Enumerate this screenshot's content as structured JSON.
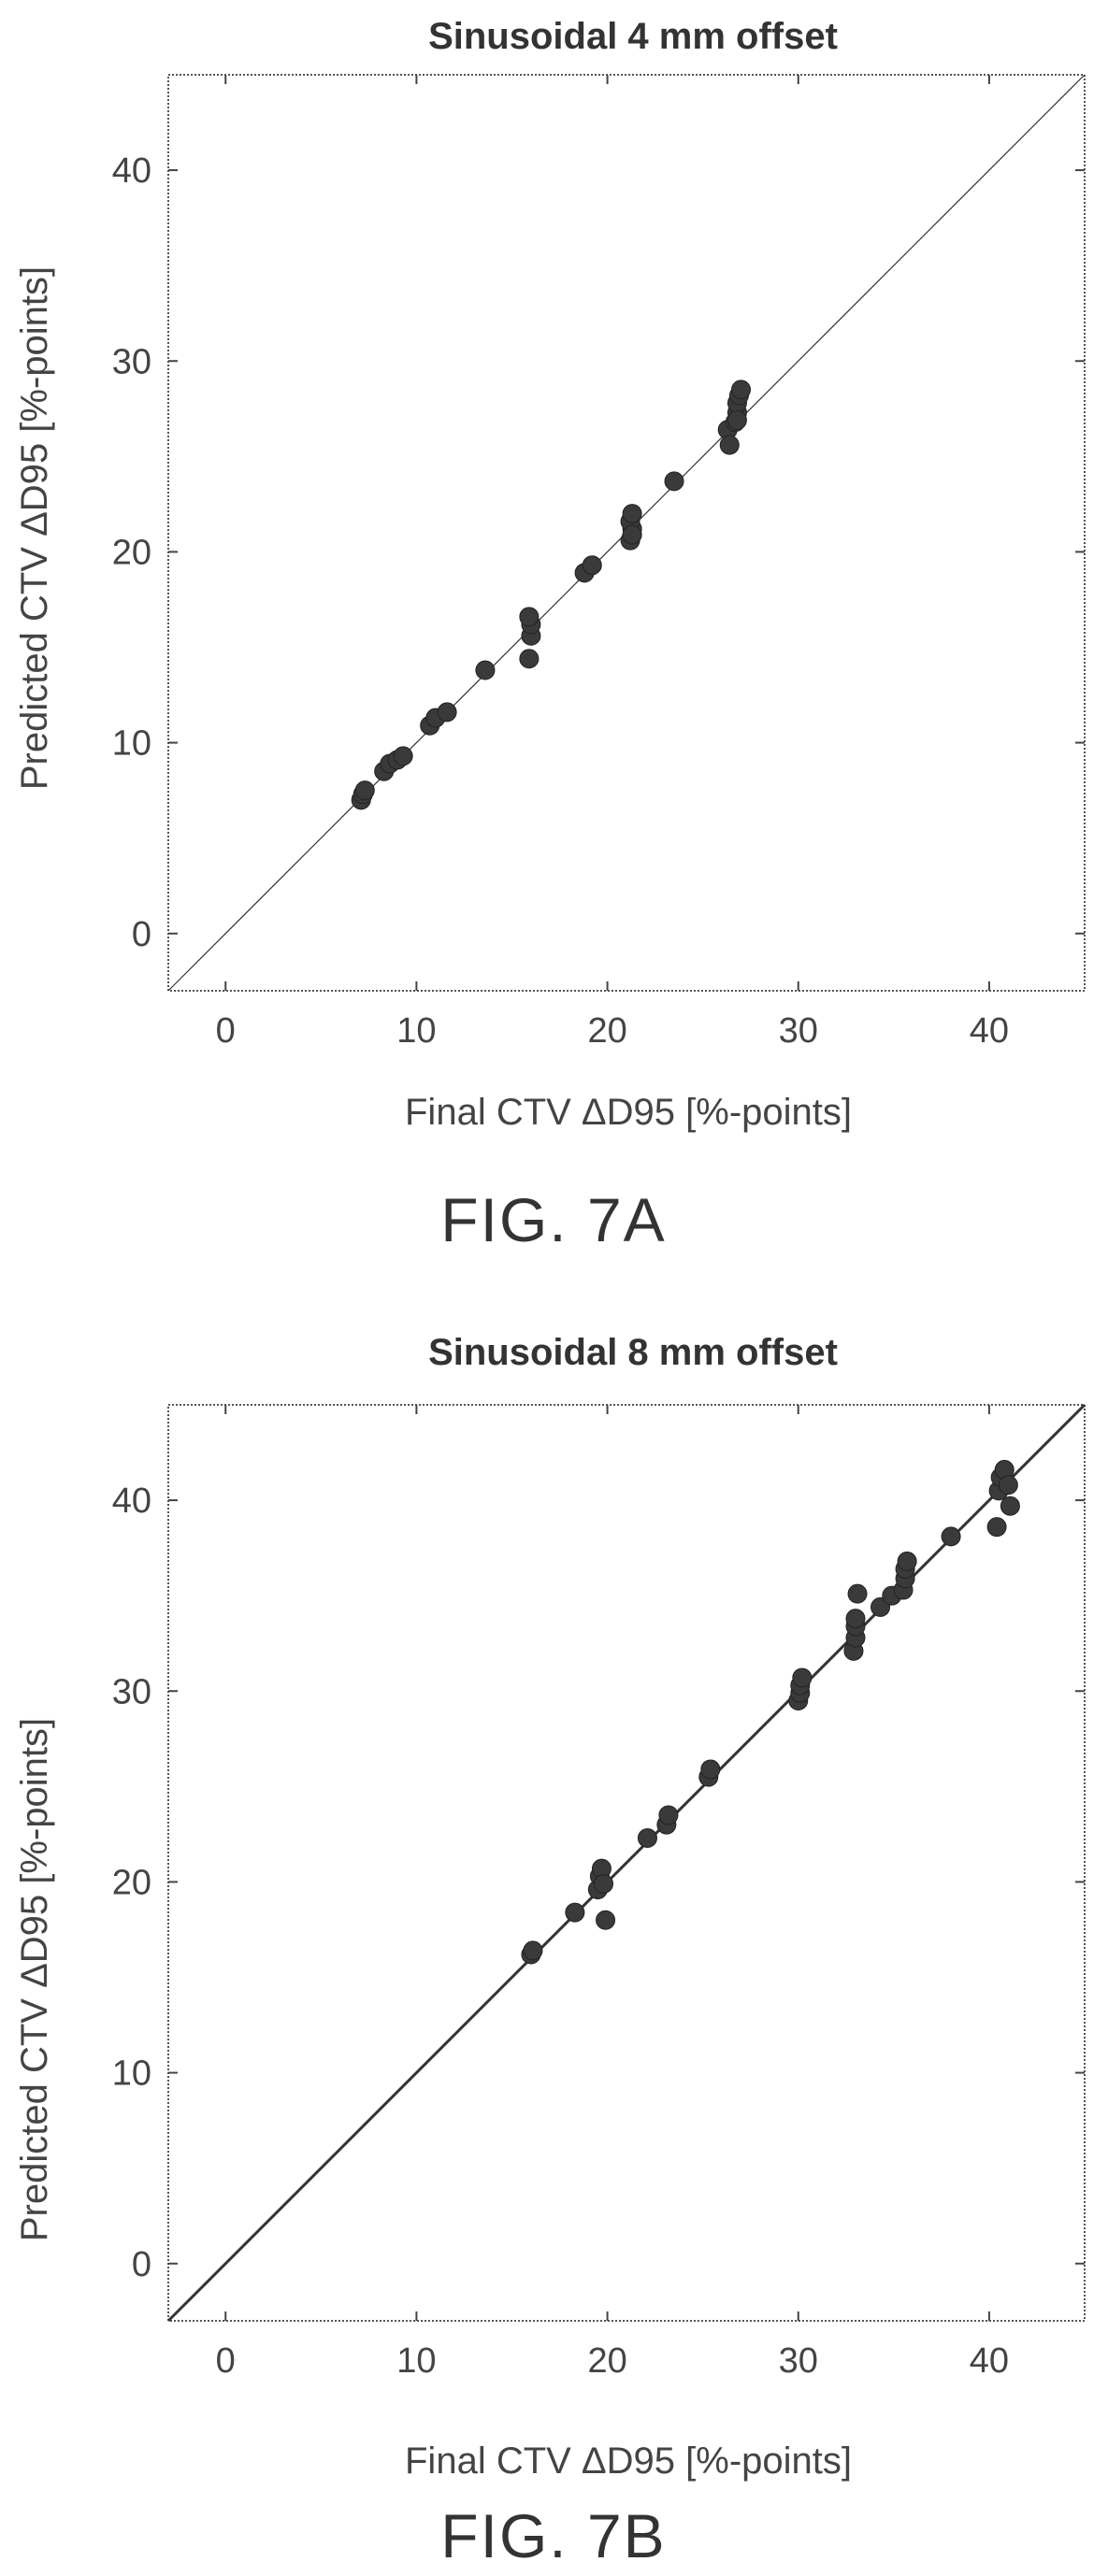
{
  "chart_data": [
    {
      "type": "scatter",
      "title": "Sinusoidal 4 mm offset",
      "xlabel": "Final CTV ΔD95 [%-points]",
      "ylabel": "Predicted CTV ΔD95 [%-points]",
      "caption": "FIG. 7A",
      "xlim": [
        -3,
        45
      ],
      "ylim": [
        -3,
        45
      ],
      "xticks": [
        0,
        10,
        20,
        30,
        40
      ],
      "yticks": [
        0,
        10,
        20,
        30,
        40
      ],
      "xtick_labels": [
        "0",
        "10",
        "20",
        "30",
        "40"
      ],
      "ytick_labels": [
        "0",
        "10",
        "20",
        "30",
        "40"
      ],
      "identity_line": true,
      "grid": false,
      "series": [
        {
          "x": [
            7.1,
            7.2,
            7.3,
            8.3,
            8.6,
            9.0,
            9.3,
            10.7,
            11.0,
            11.6,
            13.6,
            15.9,
            16.0,
            16.0,
            15.9,
            18.8,
            19.2,
            21.2,
            21.3,
            21.2,
            21.3,
            21.3,
            23.5,
            26.3,
            26.4,
            26.7,
            26.8,
            26.8,
            26.9,
            27.0,
            26.8
          ],
          "y": [
            7.0,
            7.3,
            7.5,
            8.5,
            8.9,
            9.1,
            9.3,
            10.9,
            11.3,
            11.6,
            13.8,
            14.4,
            15.6,
            16.2,
            16.6,
            18.9,
            19.3,
            20.6,
            21.2,
            21.6,
            22.0,
            20.9,
            23.7,
            26.4,
            25.6,
            26.8,
            27.3,
            27.8,
            28.2,
            28.5,
            26.9
          ]
        }
      ]
    },
    {
      "type": "scatter",
      "title": "Sinusoidal 8 mm offset",
      "xlabel": "Final CTV ΔD95 [%-points]",
      "ylabel": "Predicted CTV ΔD95 [%-points]",
      "caption": "FIG. 7B",
      "xlim": [
        -3,
        45
      ],
      "ylim": [
        -3,
        45
      ],
      "xticks": [
        0,
        10,
        20,
        30,
        40
      ],
      "yticks": [
        0,
        10,
        20,
        30,
        40
      ],
      "xtick_labels": [
        "0",
        "10",
        "20",
        "30",
        "40"
      ],
      "ytick_labels": [
        "0",
        "10",
        "20",
        "30",
        "40"
      ],
      "identity_line": true,
      "grid": false,
      "series": [
        {
          "x": [
            16.0,
            16.1,
            18.3,
            19.5,
            19.6,
            19.7,
            19.8,
            19.9,
            22.1,
            23.1,
            23.2,
            25.3,
            25.4,
            30.0,
            30.1,
            30.1,
            30.2,
            32.9,
            33.0,
            33.0,
            33.0,
            33.1,
            34.3,
            34.9,
            35.5,
            35.6,
            35.6,
            35.7,
            38.0,
            40.4,
            40.5,
            40.6,
            40.8,
            41.0,
            41.1
          ],
          "y": [
            16.2,
            16.4,
            18.4,
            19.6,
            20.3,
            20.7,
            19.9,
            18.0,
            22.3,
            23.0,
            23.5,
            25.5,
            25.9,
            29.5,
            29.9,
            30.3,
            30.7,
            32.1,
            32.8,
            33.4,
            33.8,
            35.1,
            34.4,
            35.0,
            35.3,
            35.9,
            36.4,
            36.8,
            38.1,
            38.6,
            40.5,
            41.2,
            41.6,
            40.8,
            39.7
          ]
        }
      ]
    }
  ]
}
